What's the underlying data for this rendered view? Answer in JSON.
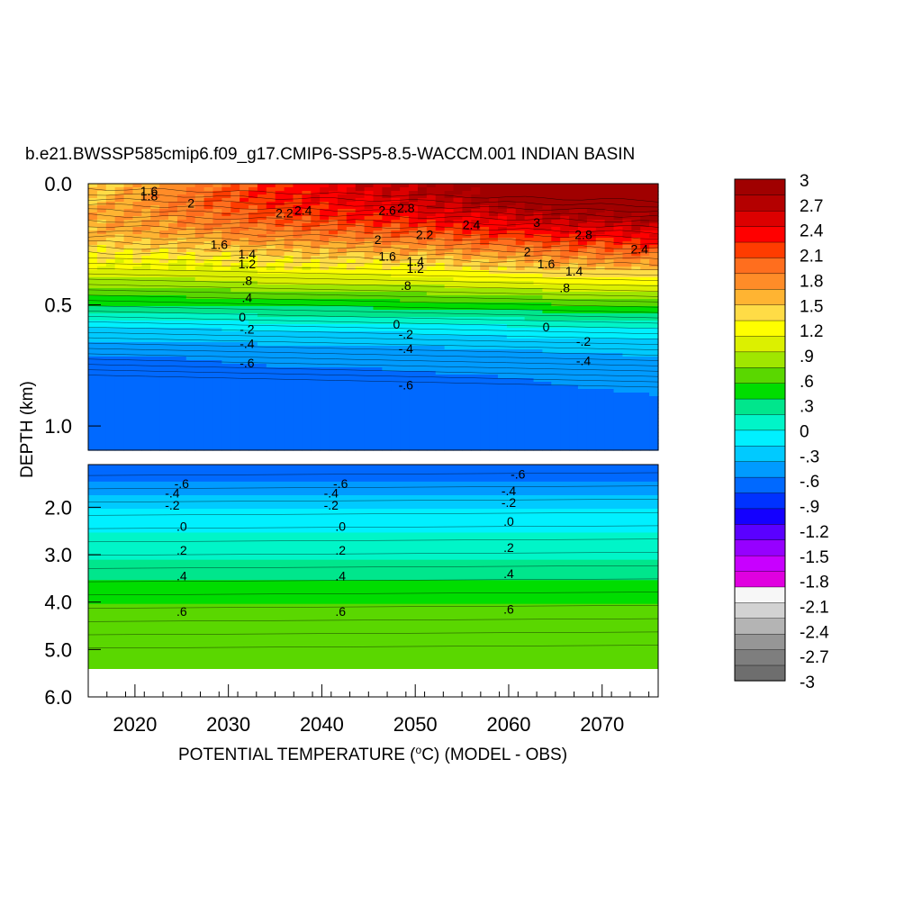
{
  "chart_data": {
    "type": "heatmap",
    "title": "b.e21.BWSSP585cmip6.f09_g17.CMIP6-SSP5-8.5-WACCM.001 INDIAN BASIN",
    "xlabel_prefix": "POTENTIAL TEMPERATURE (",
    "xlabel_unit_sup": "o",
    "xlabel_suffix": "C) (MODEL - OBS)",
    "ylabel": "DEPTH (km)",
    "x_range": [
      2015,
      2076
    ],
    "x_ticks": [
      2020,
      2030,
      2040,
      2050,
      2060,
      2070
    ],
    "x_tick_labels": [
      "2020",
      "2030",
      "2040",
      "2050",
      "2060",
      "2070"
    ],
    "upper_panel": {
      "depth_range_km": [
        0.0,
        1.1
      ],
      "y_ticks": [
        0.0,
        0.5,
        1.0
      ],
      "y_tick_labels": [
        "0.0",
        "0.5",
        "1.0"
      ]
    },
    "lower_panel": {
      "depth_range_km": [
        1.1,
        6.0
      ],
      "y_ticks": [
        2.0,
        3.0,
        4.0,
        5.0,
        6.0
      ],
      "y_tick_labels": [
        "2.0",
        "3.0",
        "4.0",
        "5.0",
        "6.0"
      ]
    },
    "colorbar": {
      "range": [
        -3,
        3
      ],
      "levels": 49,
      "labels": [
        "3",
        "2.7",
        "2.4",
        "2.1",
        "1.8",
        "1.5",
        "1.2",
        ".9",
        ".6",
        ".3",
        "0",
        "-.3",
        "-.6",
        "-.9",
        "-1.2",
        "-1.5",
        "-1.8",
        "-2.1",
        "-2.4",
        "-2.7",
        "-3"
      ],
      "colors": [
        "#6e6e6e",
        "#7e7e7e",
        "#969696",
        "#b4b4b4",
        "#d2d2d2",
        "#f7f7f7",
        "#e000e0",
        "#c800ff",
        "#9600ff",
        "#5a00ff",
        "#1400ff",
        "#0032ff",
        "#0069ff",
        "#009bff",
        "#00caff",
        "#00f0ff",
        "#00f5c8",
        "#00e68c",
        "#00dd00",
        "#5ad700",
        "#a0e600",
        "#dcf000",
        "#ffff00",
        "#ffdc46",
        "#ffb432",
        "#ff8c28",
        "#ff6e1e",
        "#ff3c00",
        "#ff0000",
        "#dc0000",
        "#b40000",
        "#a00000"
      ]
    },
    "upper_profile": {
      "years": [
        2016,
        2025,
        2035,
        2045,
        2055,
        2065,
        2075
      ],
      "depths_km": [
        0.0,
        0.05,
        0.1,
        0.2,
        0.3,
        0.4,
        0.5,
        0.6,
        0.7,
        0.8,
        0.9,
        1.0,
        1.1
      ],
      "values": [
        [
          1.4,
          1.8,
          2.2,
          2.6,
          2.9,
          3.2,
          3.3
        ],
        [
          1.5,
          1.9,
          2.3,
          2.5,
          2.8,
          3.1,
          3.2
        ],
        [
          1.6,
          1.9,
          2.2,
          2.4,
          2.6,
          2.9,
          3.0
        ],
        [
          1.6,
          1.7,
          1.9,
          2.0,
          2.2,
          2.4,
          2.5
        ],
        [
          1.3,
          1.3,
          1.4,
          1.5,
          1.6,
          1.8,
          1.9
        ],
        [
          0.9,
          0.9,
          1.0,
          1.0,
          1.1,
          1.2,
          1.2
        ],
        [
          0.4,
          0.4,
          0.45,
          0.45,
          0.5,
          0.55,
          0.55
        ],
        [
          -0.2,
          -0.2,
          -0.15,
          -0.15,
          -0.1,
          -0.05,
          -0.05
        ],
        [
          -0.55,
          -0.55,
          -0.5,
          -0.5,
          -0.45,
          -0.4,
          -0.35
        ],
        [
          -0.62,
          -0.62,
          -0.62,
          -0.6,
          -0.58,
          -0.55,
          -0.52
        ],
        [
          -0.65,
          -0.65,
          -0.65,
          -0.64,
          -0.62,
          -0.6,
          -0.58
        ],
        [
          -0.66,
          -0.66,
          -0.66,
          -0.65,
          -0.64,
          -0.62,
          -0.6
        ],
        [
          -0.66,
          -0.66,
          -0.66,
          -0.66,
          -0.65,
          -0.63,
          -0.61
        ]
      ]
    },
    "lower_profile": {
      "depths_km": [
        1.1,
        1.5,
        2.0,
        2.5,
        3.0,
        3.5,
        4.0,
        4.5,
        5.0,
        5.4
      ],
      "values": [
        -0.7,
        -0.55,
        -0.2,
        0.0,
        0.15,
        0.35,
        0.55,
        0.65,
        0.7,
        0.72
      ]
    },
    "contour_labels": [
      {
        "text": "1.6",
        "year": 2021.5,
        "depth": 0.03
      },
      {
        "text": "1.8",
        "year": 2021.5,
        "depth": 0.05
      },
      {
        "text": "2",
        "year": 2026,
        "depth": 0.08
      },
      {
        "text": "2.2",
        "year": 2036,
        "depth": 0.12
      },
      {
        "text": "2.4",
        "year": 2038,
        "depth": 0.11
      },
      {
        "text": "2.6",
        "year": 2047,
        "depth": 0.11
      },
      {
        "text": "2.8",
        "year": 2049,
        "depth": 0.1
      },
      {
        "text": "2.4",
        "year": 2056,
        "depth": 0.17
      },
      {
        "text": "3",
        "year": 2063,
        "depth": 0.16
      },
      {
        "text": "2.8",
        "year": 2068,
        "depth": 0.21
      },
      {
        "text": "2.4",
        "year": 2074,
        "depth": 0.27
      },
      {
        "text": "2.2",
        "year": 2051,
        "depth": 0.21
      },
      {
        "text": "2",
        "year": 2046,
        "depth": 0.23
      },
      {
        "text": "2",
        "year": 2062,
        "depth": 0.28
      },
      {
        "text": "1.6",
        "year": 2029,
        "depth": 0.25
      },
      {
        "text": "1.4",
        "year": 2032,
        "depth": 0.29
      },
      {
        "text": "1.2",
        "year": 2032,
        "depth": 0.33
      },
      {
        "text": "1.6",
        "year": 2047,
        "depth": 0.3
      },
      {
        "text": "1.4",
        "year": 2050,
        "depth": 0.32
      },
      {
        "text": "1.2",
        "year": 2050,
        "depth": 0.35
      },
      {
        "text": "1.6",
        "year": 2064,
        "depth": 0.33
      },
      {
        "text": "1.4",
        "year": 2067,
        "depth": 0.36
      },
      {
        "text": ".8",
        "year": 2032,
        "depth": 0.4
      },
      {
        "text": ".4",
        "year": 2032,
        "depth": 0.47
      },
      {
        "text": "0",
        "year": 2031.5,
        "depth": 0.55
      },
      {
        "text": ".8",
        "year": 2049,
        "depth": 0.42
      },
      {
        "text": "0",
        "year": 2048,
        "depth": 0.58
      },
      {
        "text": ".8",
        "year": 2066,
        "depth": 0.43
      },
      {
        "text": "0",
        "year": 2064,
        "depth": 0.59
      },
      {
        "text": "-.2",
        "year": 2032,
        "depth": 0.6
      },
      {
        "text": "-.4",
        "year": 2032,
        "depth": 0.66
      },
      {
        "text": "-.6",
        "year": 2032,
        "depth": 0.74
      },
      {
        "text": "-.2",
        "year": 2049,
        "depth": 0.62
      },
      {
        "text": "-.4",
        "year": 2049,
        "depth": 0.68
      },
      {
        "text": "-.6",
        "year": 2049,
        "depth": 0.83
      },
      {
        "text": "-.2",
        "year": 2068,
        "depth": 0.65
      },
      {
        "text": "-.4",
        "year": 2068,
        "depth": 0.73
      },
      {
        "text": "-.6",
        "year": 2025,
        "depth": 1.5,
        "panel": "lower"
      },
      {
        "text": "-.4",
        "year": 2024,
        "depth": 1.7,
        "panel": "lower"
      },
      {
        "text": "-.2",
        "year": 2024,
        "depth": 1.95,
        "panel": "lower"
      },
      {
        "text": ".0",
        "year": 2025,
        "depth": 2.4,
        "panel": "lower"
      },
      {
        "text": ".2",
        "year": 2025,
        "depth": 2.9,
        "panel": "lower"
      },
      {
        "text": ".4",
        "year": 2025,
        "depth": 3.45,
        "panel": "lower"
      },
      {
        "text": ".6",
        "year": 2025,
        "depth": 4.2,
        "panel": "lower"
      },
      {
        "text": "-.6",
        "year": 2042,
        "depth": 1.5,
        "panel": "lower"
      },
      {
        "text": "-.4",
        "year": 2041,
        "depth": 1.7,
        "panel": "lower"
      },
      {
        "text": "-.2",
        "year": 2041,
        "depth": 1.95,
        "panel": "lower"
      },
      {
        "text": ".0",
        "year": 2042,
        "depth": 2.4,
        "panel": "lower"
      },
      {
        "text": ".2",
        "year": 2042,
        "depth": 2.9,
        "panel": "lower"
      },
      {
        "text": ".4",
        "year": 2042,
        "depth": 3.45,
        "panel": "lower"
      },
      {
        "text": ".6",
        "year": 2042,
        "depth": 4.2,
        "panel": "lower"
      },
      {
        "text": "-.6",
        "year": 2061,
        "depth": 1.3,
        "panel": "lower"
      },
      {
        "text": "-.4",
        "year": 2060,
        "depth": 1.65,
        "panel": "lower"
      },
      {
        "text": "-.2",
        "year": 2060,
        "depth": 1.9,
        "panel": "lower"
      },
      {
        "text": ".0",
        "year": 2060,
        "depth": 2.3,
        "panel": "lower"
      },
      {
        "text": ".2",
        "year": 2060,
        "depth": 2.85,
        "panel": "lower"
      },
      {
        "text": ".4",
        "year": 2060,
        "depth": 3.4,
        "panel": "lower"
      },
      {
        "text": ".6",
        "year": 2060,
        "depth": 4.15,
        "panel": "lower"
      }
    ]
  }
}
